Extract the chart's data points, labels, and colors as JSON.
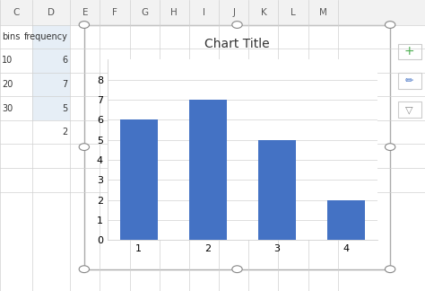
{
  "categories": [
    1,
    2,
    3,
    4
  ],
  "values": [
    6,
    7,
    5,
    2
  ],
  "bar_color": "#4472C4",
  "title": "Chart Title",
  "title_fontsize": 10,
  "ylim": [
    0,
    9
  ],
  "yticks": [
    0,
    1,
    2,
    3,
    4,
    5,
    6,
    7,
    8
  ],
  "col_headers": [
    "C",
    "D",
    "E",
    "F",
    "G",
    "H",
    "I",
    "J",
    "K",
    "L",
    "M"
  ],
  "col_widths": [
    0.07,
    0.09,
    0.07,
    0.07,
    0.07,
    0.07,
    0.07,
    0.07,
    0.07,
    0.07,
    0.07
  ],
  "sheet_bg": "#FFFFFF",
  "header_bg": "#F2F2F2",
  "grid_line_color": "#D0D0D0",
  "header_text_color": "#595959",
  "cell_data": {
    "C": [
      "bins",
      "10",
      "20",
      "30",
      ""
    ],
    "D": [
      "frequency",
      "6",
      "7",
      "5",
      "2"
    ]
  },
  "chart_border_color": "#ABABAB",
  "chart_bg": "#FFFFFF",
  "inner_grid_color": "#D9D9D9",
  "selection_dot_color": "#FFFFFF",
  "selection_dot_border": "#888888"
}
